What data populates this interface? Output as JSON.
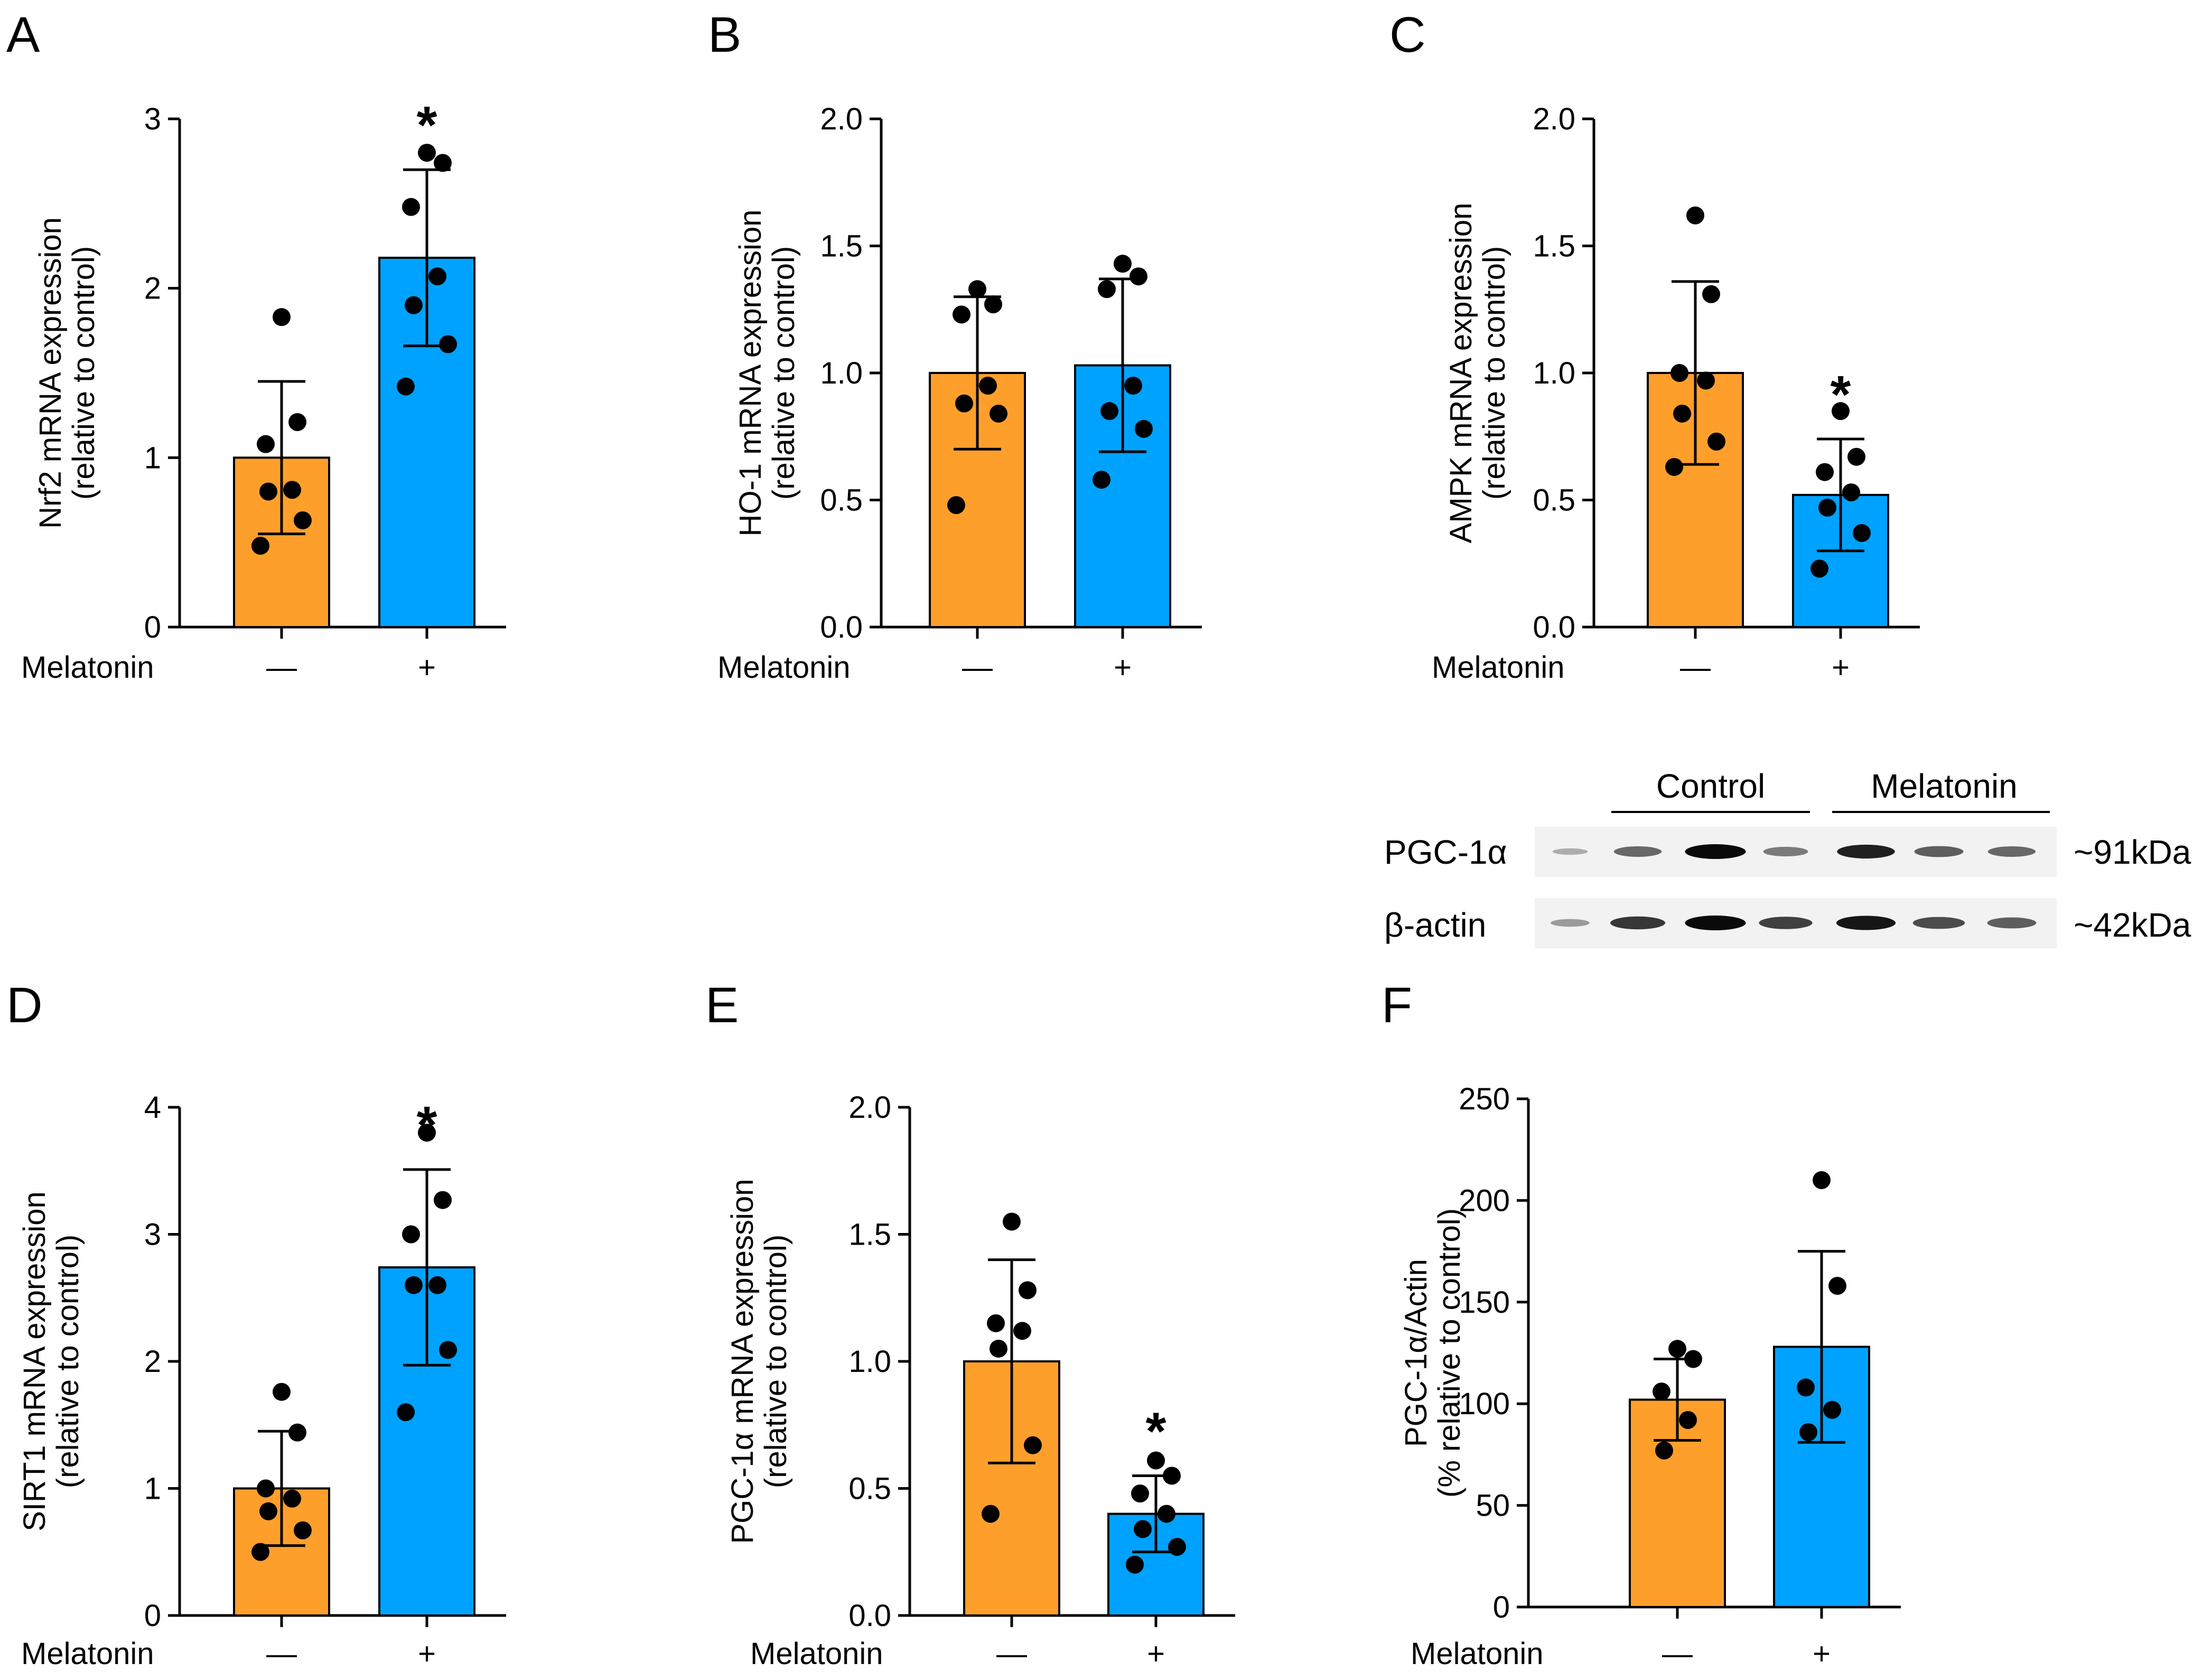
{
  "colors": {
    "control": "#FF9F2B",
    "melatonin": "#00A2FF"
  },
  "x_axis_label": "Melatonin",
  "chart_data": [
    {
      "id": "A",
      "type": "bar",
      "panel": "A",
      "ylabel": [
        "Nrf2 mRNA expression",
        "(relative to control)"
      ],
      "ylim": [
        0,
        3
      ],
      "yticks": [
        "0",
        "1",
        "2",
        "3"
      ],
      "categories": [
        "—",
        "+"
      ],
      "values": [
        1.0,
        2.18
      ],
      "err": [
        0.45,
        0.52
      ],
      "points": [
        [
          1.83,
          1.21,
          1.08,
          0.81,
          0.8,
          0.63,
          0.48
        ],
        [
          2.8,
          2.74,
          2.48,
          2.07,
          1.9,
          1.67,
          1.42
        ]
      ],
      "sig": "*",
      "sig_on": 1
    },
    {
      "id": "B",
      "type": "bar",
      "panel": "B",
      "ylabel": [
        "HO-1 mRNA expression",
        "(relative to control)"
      ],
      "ylim": [
        0,
        2
      ],
      "yticks": [
        "0.0",
        "0.5",
        "1.0",
        "1.5",
        "2.0"
      ],
      "categories": [
        "—",
        "+"
      ],
      "values": [
        1.0,
        1.03
      ],
      "err": [
        0.3,
        0.34
      ],
      "points": [
        [
          1.33,
          1.27,
          1.23,
          0.95,
          0.88,
          0.84,
          0.48
        ],
        [
          1.43,
          1.38,
          1.33,
          0.95,
          0.85,
          0.78,
          0.58
        ]
      ],
      "sig": "",
      "sig_on": -1
    },
    {
      "id": "C",
      "type": "bar",
      "panel": "C",
      "ylabel": [
        "AMPK mRNA expression",
        "(relative to control)"
      ],
      "ylim": [
        0,
        2
      ],
      "yticks": [
        "0.0",
        "0.5",
        "1.0",
        "1.5",
        "2.0"
      ],
      "categories": [
        "—",
        "+"
      ],
      "values": [
        1.0,
        0.52
      ],
      "err": [
        0.36,
        0.22
      ],
      "points": [
        [
          1.62,
          1.31,
          1.0,
          0.97,
          0.84,
          0.73,
          0.63
        ],
        [
          0.85,
          0.67,
          0.61,
          0.53,
          0.47,
          0.37,
          0.23
        ]
      ],
      "sig": "*",
      "sig_on": 1
    },
    {
      "id": "D",
      "type": "bar",
      "panel": "D",
      "ylabel": [
        "SIRT1 mRNA expression",
        "(relative to control)"
      ],
      "ylim": [
        0,
        4
      ],
      "yticks": [
        "0",
        "1",
        "2",
        "3",
        "4"
      ],
      "categories": [
        "—",
        "+"
      ],
      "values": [
        1.0,
        2.74
      ],
      "err": [
        0.45,
        0.77
      ],
      "points": [
        [
          1.76,
          1.44,
          1.0,
          0.92,
          0.82,
          0.67,
          0.5
        ],
        [
          3.8,
          3.27,
          3.0,
          2.6,
          2.6,
          2.09,
          1.6
        ]
      ],
      "sig": "*",
      "sig_on": 1
    },
    {
      "id": "E",
      "type": "bar",
      "panel": "E",
      "ylabel": [
        "PGC-1α mRNA expression",
        "(relative to control)"
      ],
      "ylim": [
        0,
        2
      ],
      "yticks": [
        "0.0",
        "0.5",
        "1.0",
        "1.5",
        "2.0"
      ],
      "categories": [
        "—",
        "+"
      ],
      "values": [
        1.0,
        0.4
      ],
      "err": [
        0.4,
        0.15
      ],
      "points": [
        [
          1.55,
          1.28,
          1.15,
          1.12,
          1.05,
          0.67,
          0.4
        ],
        [
          0.61,
          0.55,
          0.48,
          0.4,
          0.34,
          0.27,
          0.2
        ]
      ],
      "sig": "*",
      "sig_on": 1
    },
    {
      "id": "F",
      "type": "bar",
      "panel": "F",
      "ylabel": [
        "PGC-1α/Actin",
        "(% relative to control)"
      ],
      "ylim": [
        0,
        250
      ],
      "yticks": [
        "0",
        "50",
        "100",
        "150",
        "200",
        "250"
      ],
      "categories": [
        "—",
        "+"
      ],
      "values": [
        102,
        128
      ],
      "err": [
        20,
        47
      ],
      "points": [
        [
          127,
          122,
          106,
          92,
          77
        ],
        [
          210,
          158,
          108,
          97,
          86
        ]
      ],
      "sig": "",
      "sig_on": -1
    }
  ],
  "western_blot": {
    "groups": [
      "Control",
      "Melatonin"
    ],
    "rows": [
      {
        "label": "PGC-1α",
        "size": "~91kDa",
        "intensities": [
          0.12,
          0.55,
          1.0,
          0.45,
          0.9,
          0.6,
          0.55
        ]
      },
      {
        "label": "β-actin",
        "size": "~42kDa",
        "intensities": [
          0.25,
          0.8,
          1.0,
          0.75,
          0.95,
          0.7,
          0.6
        ]
      }
    ]
  }
}
